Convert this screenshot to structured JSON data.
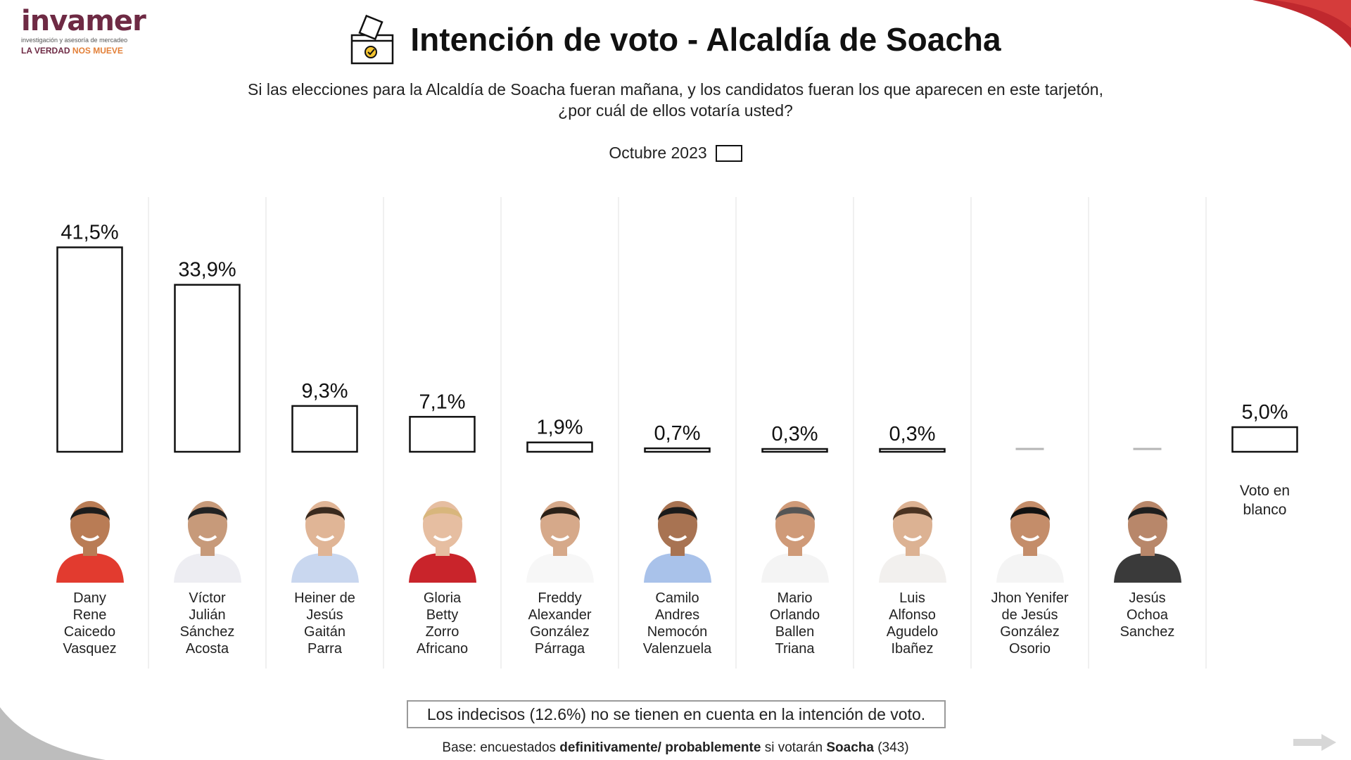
{
  "brand": {
    "name": "invamer",
    "tagline": "investigación y asesoría de mercadeo",
    "slogan_part1": "LA VERDAD",
    "slogan_part2": "NOS MUEVE",
    "primary_color": "#6e2a44",
    "accent_color": "#e37f37"
  },
  "header": {
    "title": "Intención de voto - Alcaldía de Soacha",
    "icon": "ballot-box-icon"
  },
  "question": {
    "line1": "Si las elecciones para la Alcaldía de Soacha fueran mañana, y los candidatos fueran los que aparecen en este tarjetón,",
    "line2": "¿por cuál de ellos votaría usted?"
  },
  "legend": {
    "label": "Octubre 2023"
  },
  "chart_data": {
    "type": "bar",
    "categories": [
      "Dany Rene Caicedo Vasquez",
      "Víctor Julián Sánchez Acosta",
      "Heiner de Jesús Gaitán Parra",
      "Gloria Betty Zorro Africano",
      "Freddy Alexander González Párraga",
      "Camilo Andres Nemocón Valenzuela",
      "Mario Orlando Ballen Triana",
      "Luis Alfonso Agudelo Ibañez",
      "Jhon Yenifer de Jesús González Osorio",
      "Jesús Ochoa Sanchez",
      "Voto en blanco"
    ],
    "series": [
      {
        "name": "Octubre 2023",
        "values": [
          41.5,
          33.9,
          9.3,
          7.1,
          1.9,
          0.7,
          0.3,
          0.3,
          null,
          null,
          5.0
        ]
      }
    ],
    "value_labels": [
      "41,5%",
      "33,9%",
      "9,3%",
      "7,1%",
      "1,9%",
      "0,7%",
      "0,3%",
      "0,3%",
      "",
      "",
      "5,0%"
    ],
    "unit": "%",
    "ylim": [
      0,
      45
    ],
    "grid": false,
    "legend_position": "top-center",
    "bar_fill": "#ffffff",
    "bar_stroke": "#111111",
    "missing_marker_color": "#b5b5b5"
  },
  "candidates": [
    {
      "name_lines": [
        "Dany",
        "Rene",
        "Caicedo",
        "Vasquez"
      ],
      "shirt": "#e23b2f",
      "skin": "#b97c55",
      "hair": "#1c1c1c"
    },
    {
      "name_lines": [
        "Víctor",
        "Julián",
        "Sánchez",
        "Acosta"
      ],
      "shirt": "#ededf2",
      "skin": "#c79a7a",
      "hair": "#222222"
    },
    {
      "name_lines": [
        "Heiner de",
        "Jesús",
        "Gaitán",
        "Parra"
      ],
      "shirt": "#c9d7ef",
      "skin": "#e0b596",
      "hair": "#3a2a1e"
    },
    {
      "name_lines": [
        "Gloria",
        "Betty",
        "Zorro",
        "Africano"
      ],
      "shirt": "#c9242b",
      "skin": "#e6bea1",
      "hair": "#d8b67c"
    },
    {
      "name_lines": [
        "Freddy",
        "Alexander",
        "González",
        "Párraga"
      ],
      "shirt": "#f7f7f7",
      "skin": "#d6a98a",
      "hair": "#2b2118"
    },
    {
      "name_lines": [
        "Camilo",
        "Andres",
        "Nemocón",
        "Valenzuela"
      ],
      "shirt": "#a9c2ea",
      "skin": "#a87352",
      "hair": "#1a1a1a"
    },
    {
      "name_lines": [
        "Mario",
        "Orlando",
        "Ballen",
        "Triana"
      ],
      "shirt": "#f4f4f4",
      "skin": "#cf9a78",
      "hair": "#555555"
    },
    {
      "name_lines": [
        "Luis",
        "Alfonso",
        "Agudelo",
        "Ibañez"
      ],
      "shirt": "#f2f0ee",
      "skin": "#dcb293",
      "hair": "#4a3322"
    },
    {
      "name_lines": [
        "Jhon Yenifer",
        "de Jesús",
        "González",
        "Osorio"
      ],
      "shirt": "#f4f4f4",
      "skin": "#c48d6a",
      "hair": "#111111"
    },
    {
      "name_lines": [
        "Jesús",
        "Ochoa",
        "Sanchez"
      ],
      "shirt": "#3a3a3a",
      "skin": "#b8876a",
      "hair": "#1e1e1e"
    }
  ],
  "blank_vote": {
    "line1": "Voto en",
    "line2": "blanco"
  },
  "footer": {
    "note": "Los indecisos (12.6%) no se tienen en cuenta en la intención de voto.",
    "base_prefix": "Base: encuestados ",
    "base_bold1": "definitivamente/ probablemente",
    "base_mid": " si votarán ",
    "base_bold2": "Soacha",
    "base_suffix": " (343)"
  }
}
